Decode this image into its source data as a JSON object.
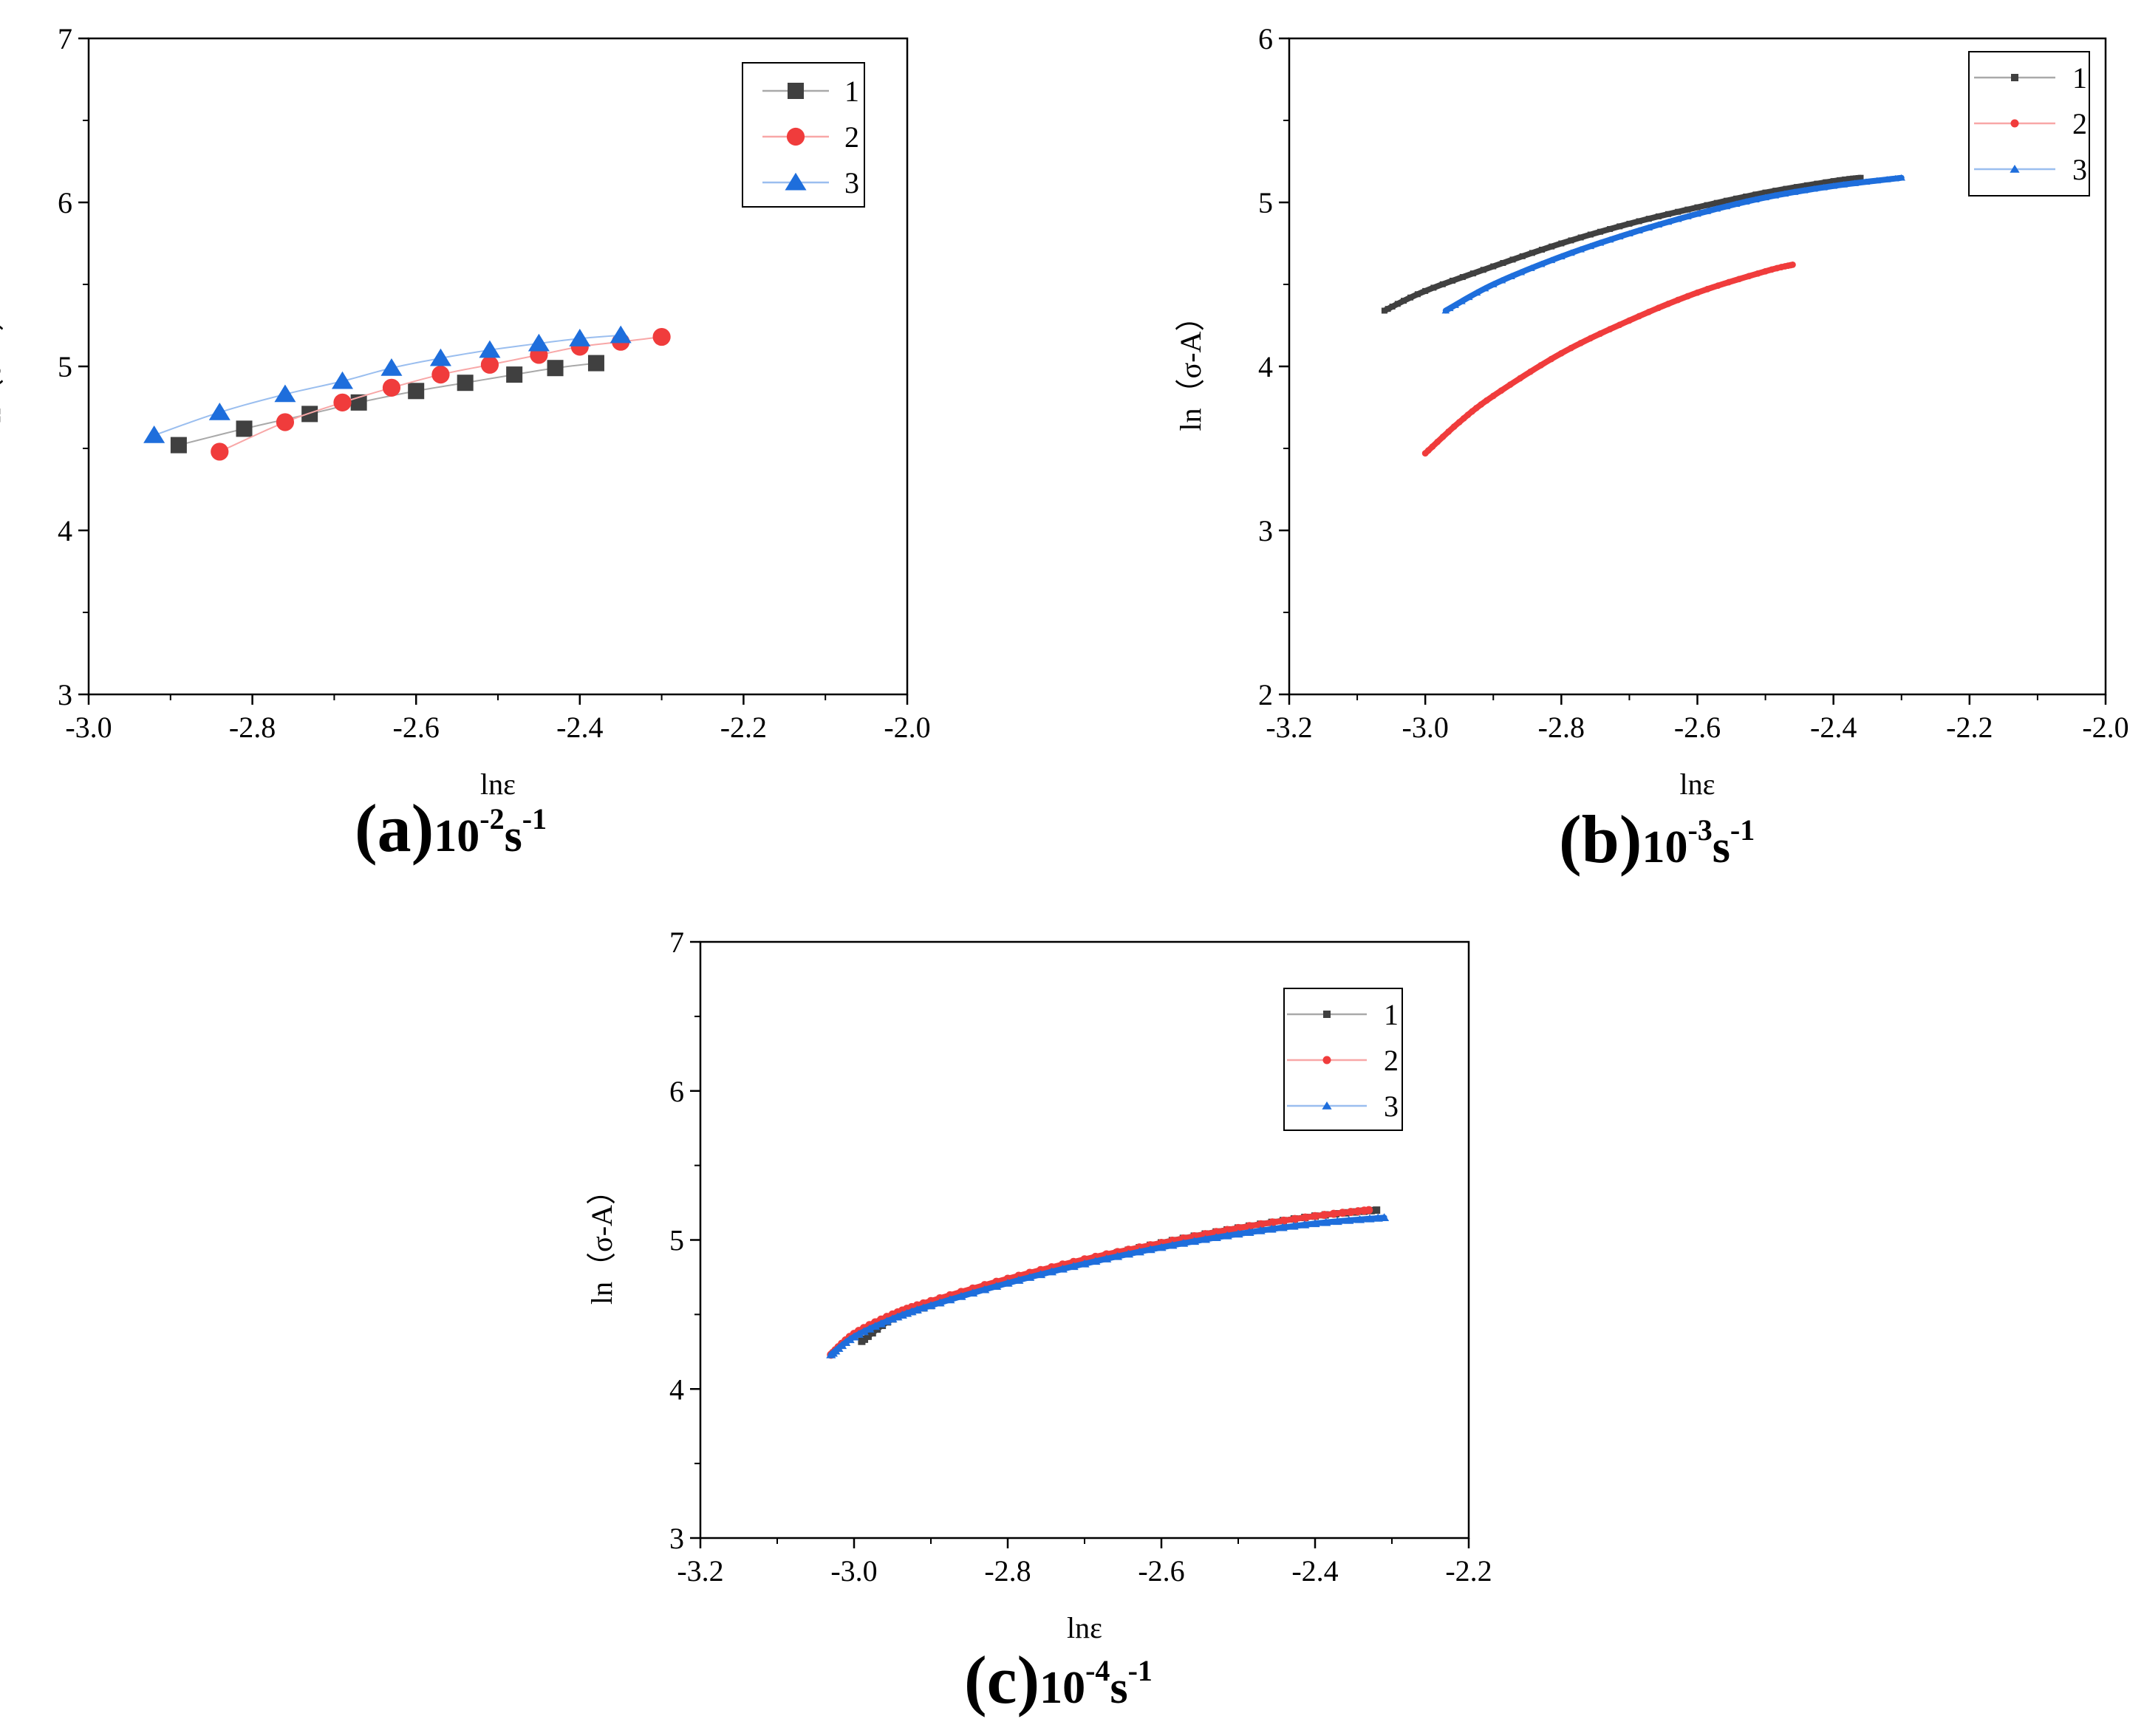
{
  "chart_data": [
    {
      "id": "a",
      "type": "scatter",
      "xlabel": "lnε",
      "ylabel": "ln（σ-A）",
      "xlim": [
        -3.0,
        -2.0
      ],
      "ylim": [
        3,
        7
      ],
      "xticks": [
        -3.0,
        -2.8,
        -2.6,
        -2.4,
        -2.2,
        -2.0
      ],
      "xtick_labels": [
        "-3.0",
        "-2.8",
        "-2.6",
        "-2.4",
        "-2.2",
        "-2.0"
      ],
      "yticks": [
        3,
        4,
        5,
        6,
        7
      ],
      "ytick_labels": [
        "3",
        "4",
        "5",
        "6",
        "7"
      ],
      "legend_position": "top-right",
      "caption": {
        "label": "(a)",
        "base": "10",
        "exp1": "-2",
        "unit": "s",
        "exp2": "-1"
      },
      "series": [
        {
          "name": "1",
          "color": "#404040",
          "marker": "square",
          "x": [
            -2.89,
            -2.81,
            -2.73,
            -2.67,
            -2.6,
            -2.54,
            -2.48,
            -2.43,
            -2.38
          ],
          "y": [
            4.52,
            4.62,
            4.71,
            4.78,
            4.85,
            4.9,
            4.95,
            4.99,
            5.02
          ]
        },
        {
          "name": "2",
          "color": "#f03c3c",
          "marker": "circle",
          "x": [
            -2.84,
            -2.76,
            -2.69,
            -2.63,
            -2.57,
            -2.51,
            -2.45,
            -2.4,
            -2.35,
            -2.3
          ],
          "y": [
            4.48,
            4.66,
            4.78,
            4.87,
            4.95,
            5.01,
            5.07,
            5.12,
            5.15,
            5.18
          ]
        },
        {
          "name": "3",
          "color": "#1e6edc",
          "marker": "triangle",
          "x": [
            -2.92,
            -2.84,
            -2.76,
            -2.69,
            -2.63,
            -2.57,
            -2.51,
            -2.45,
            -2.4,
            -2.35
          ],
          "y": [
            4.58,
            4.72,
            4.83,
            4.91,
            4.99,
            5.05,
            5.1,
            5.14,
            5.17,
            5.19
          ]
        }
      ]
    },
    {
      "id": "b",
      "type": "line",
      "xlabel": "lnε",
      "ylabel": "ln（σ-A）",
      "xlim": [
        -3.2,
        -2.0
      ],
      "ylim": [
        2,
        6
      ],
      "xticks": [
        -3.2,
        -3.0,
        -2.8,
        -2.6,
        -2.4,
        -2.2,
        -2.0
      ],
      "xtick_labels": [
        "-3.2",
        "-3.0",
        "-2.8",
        "-2.6",
        "-2.4",
        "-2.2",
        "-2.0"
      ],
      "yticks": [
        2,
        3,
        4,
        5,
        6
      ],
      "ytick_labels": [
        "2",
        "3",
        "4",
        "5",
        "6"
      ],
      "legend_position": "top-right",
      "caption": {
        "label": "(b)",
        "base": "10",
        "exp1": "-3",
        "unit": "s",
        "exp2": "-1"
      },
      "series": [
        {
          "name": "1",
          "color": "#404040",
          "marker": "square",
          "x": [
            -3.06,
            -3.0,
            -2.9,
            -2.8,
            -2.7,
            -2.6,
            -2.5,
            -2.4,
            -2.36
          ],
          "y": [
            4.34,
            4.46,
            4.61,
            4.75,
            4.87,
            4.97,
            5.06,
            5.13,
            5.15
          ]
        },
        {
          "name": "2",
          "color": "#f03c3c",
          "marker": "circle",
          "x": [
            -3.0,
            -2.95,
            -2.9,
            -2.8,
            -2.7,
            -2.6,
            -2.5,
            -2.46
          ],
          "y": [
            3.47,
            3.66,
            3.82,
            4.08,
            4.28,
            4.45,
            4.58,
            4.62
          ]
        },
        {
          "name": "3",
          "color": "#1e6edc",
          "marker": "triangle",
          "x": [
            -2.97,
            -2.9,
            -2.8,
            -2.7,
            -2.6,
            -2.5,
            -2.4,
            -2.3
          ],
          "y": [
            4.34,
            4.5,
            4.67,
            4.81,
            4.93,
            5.03,
            5.1,
            5.15
          ]
        }
      ]
    },
    {
      "id": "c",
      "type": "line",
      "xlabel": "lnε",
      "ylabel": "ln（σ-A）",
      "xlim": [
        -3.2,
        -2.2
      ],
      "ylim": [
        3,
        7
      ],
      "xticks": [
        -3.2,
        -3.0,
        -2.8,
        -2.6,
        -2.4,
        -2.2
      ],
      "xtick_labels": [
        "-3.2",
        "-3.0",
        "-2.8",
        "-2.6",
        "-2.4",
        "-2.2"
      ],
      "yticks": [
        3,
        4,
        5,
        6,
        7
      ],
      "ytick_labels": [
        "3",
        "4",
        "5",
        "6",
        "7"
      ],
      "legend_position": "top-right",
      "caption": {
        "label": "(c)",
        "base": "10",
        "exp1": "-4",
        "unit": "s",
        "exp2": "-1"
      },
      "series": [
        {
          "name": "1",
          "color": "#404040",
          "marker": "square",
          "x": [
            -2.99,
            -2.95,
            -2.9,
            -2.8,
            -2.7,
            -2.6,
            -2.5,
            -2.4,
            -2.32
          ],
          "y": [
            4.32,
            4.47,
            4.56,
            4.72,
            4.86,
            4.98,
            5.08,
            5.16,
            5.2
          ]
        },
        {
          "name": "2",
          "color": "#f03c3c",
          "marker": "circle",
          "x": [
            -3.03,
            -3.0,
            -2.95,
            -2.9,
            -2.8,
            -2.7,
            -2.6,
            -2.5,
            -2.4,
            -2.33
          ],
          "y": [
            4.23,
            4.37,
            4.5,
            4.59,
            4.74,
            4.87,
            4.98,
            5.08,
            5.16,
            5.2
          ]
        },
        {
          "name": "3",
          "color": "#1e6edc",
          "marker": "triangle",
          "x": [
            -3.03,
            -3.0,
            -2.95,
            -2.9,
            -2.8,
            -2.7,
            -2.6,
            -2.5,
            -2.4,
            -2.31
          ],
          "y": [
            4.23,
            4.35,
            4.47,
            4.56,
            4.71,
            4.84,
            4.95,
            5.04,
            5.11,
            5.15
          ]
        }
      ]
    }
  ]
}
